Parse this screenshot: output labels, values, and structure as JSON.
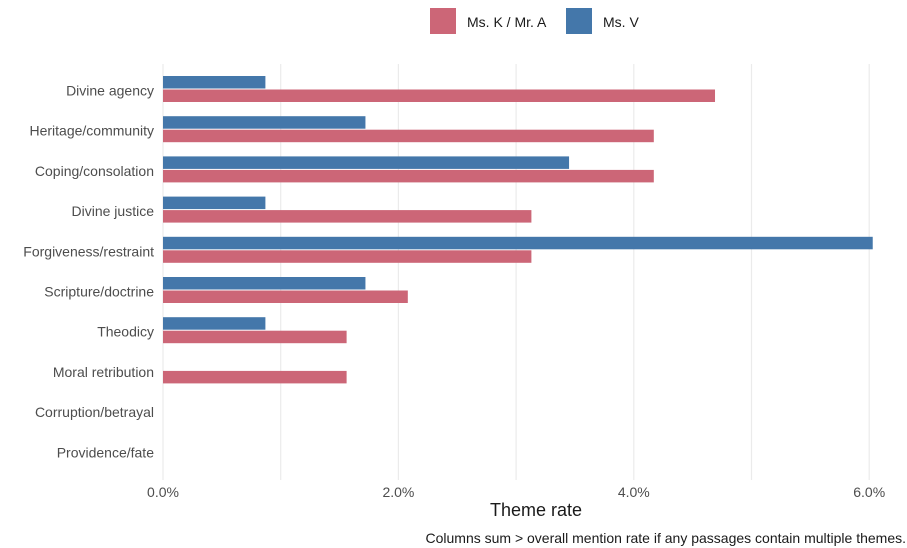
{
  "chart_data": {
    "type": "bar",
    "orientation": "horizontal",
    "categories": [
      "Divine agency",
      "Heritage/community",
      "Coping/consolation",
      "Divine justice",
      "Forgiveness/restraint",
      "Scripture/doctrine",
      "Theodicy",
      "Moral retribution",
      "Corruption/betrayal",
      "Providence/fate"
    ],
    "series": [
      {
        "name": "Ms. K / Mr. A",
        "color": "#cc6677",
        "values": [
          4.69,
          4.17,
          4.17,
          3.13,
          3.13,
          2.08,
          1.56,
          1.56,
          0,
          0
        ]
      },
      {
        "name": "Ms. V",
        "color": "#4477aa",
        "values": [
          0.87,
          1.72,
          3.45,
          0.87,
          6.03,
          1.72,
          0.87,
          0,
          0,
          0
        ]
      }
    ],
    "xlim": [
      0,
      6.0
    ],
    "xticks": [
      0,
      2,
      4,
      6
    ],
    "xtick_labels": [
      "0.0%",
      "2.0%",
      "4.0%",
      "6.0%"
    ],
    "xlabel": "Theme rate",
    "ylabel": "",
    "caption": "Columns sum > overall mention rate if any passages contain multiple themes.",
    "legend_position": "top",
    "grid": true
  }
}
